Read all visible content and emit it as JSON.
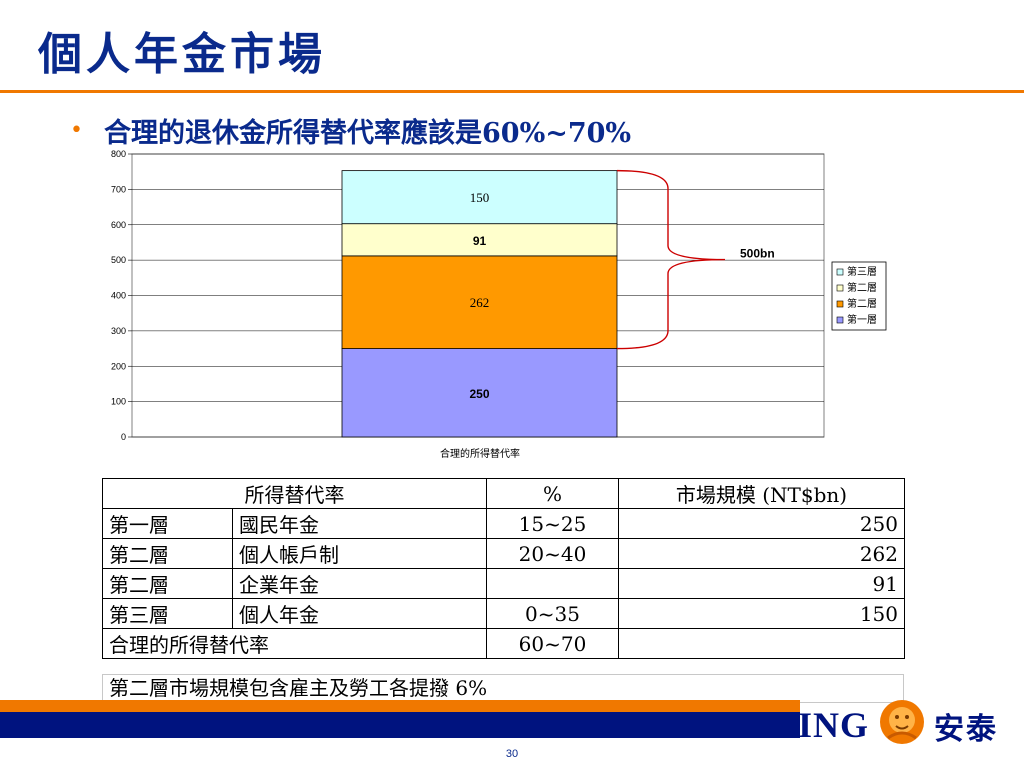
{
  "slide": {
    "title": "個人年金市場",
    "bullet": "合理的退休金所得替代率應該是60%~70%",
    "page_number": "30"
  },
  "colors": {
    "title": "#0a2a8c",
    "accent_orange": "#f07800",
    "navy_band": "#00137f",
    "tier1": "#9999ff",
    "tier2_personal": "#ff9900",
    "tier2_corporate": "#ffffcc",
    "tier3": "#ccffff",
    "bracket": "#cc0000"
  },
  "chart_data": {
    "type": "bar",
    "stacked": true,
    "categories": [
      "合理的所得替代率"
    ],
    "xlabel": "合理的所得替代率",
    "ylim": [
      0,
      800
    ],
    "yticks": [
      0,
      100,
      200,
      300,
      400,
      500,
      600,
      700,
      800
    ],
    "grid": true,
    "legend_position": "right",
    "series": [
      {
        "name": "第一層",
        "values": [
          250
        ],
        "color": "#9999ff",
        "label": "250",
        "label_bold": true
      },
      {
        "name": "第二層",
        "values": [
          262
        ],
        "color": "#ff9900",
        "label": "262",
        "label_bold": false
      },
      {
        "name": "第二層",
        "values": [
          91
        ],
        "color": "#ffffcc",
        "label": "91",
        "label_bold": true
      },
      {
        "name": "第三層",
        "values": [
          150
        ],
        "color": "#ccffff",
        "label": "150",
        "label_bold": false
      }
    ],
    "legend_entries": [
      "第三層",
      "第二層",
      "第二層",
      "第一層"
    ],
    "annotation": {
      "text": "500bn",
      "spans_series": [
        1,
        2,
        3
      ]
    }
  },
  "table": {
    "header": {
      "col1": "所得替代率",
      "col2": "%",
      "col3": "市場規模 (NT$bn)"
    },
    "rows": [
      {
        "tier": "第一層",
        "name": "國民年金",
        "pct": "15~25",
        "size": "250"
      },
      {
        "tier": "第二層",
        "name": "個人帳戶制",
        "pct": "20~40",
        "size": "262"
      },
      {
        "tier": "第二層",
        "name": "企業年金",
        "pct": "",
        "size": "91"
      },
      {
        "tier": "第三層",
        "name": "個人年金",
        "pct": "0~35",
        "size": "150"
      }
    ],
    "total": {
      "label": "合理的所得替代率",
      "pct": "60~70",
      "size": ""
    },
    "note": "第二層市場規模包含雇主及勞工各提撥 6%"
  },
  "logo": {
    "brand": "ING",
    "chinese": "安泰"
  }
}
